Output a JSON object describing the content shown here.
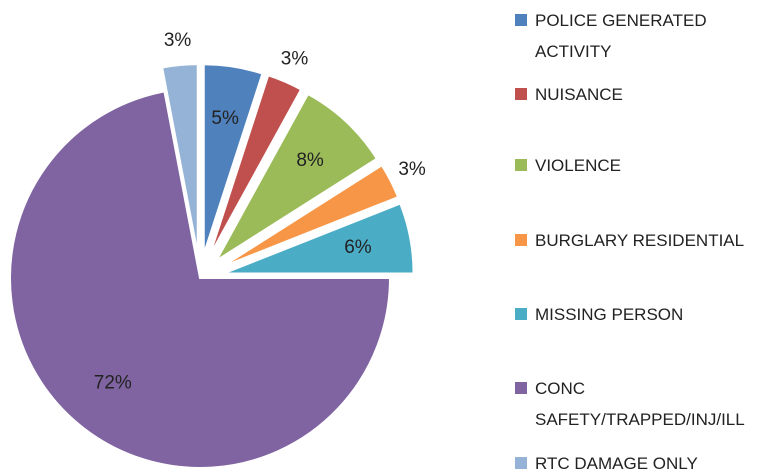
{
  "chart_data": {
    "type": "pie",
    "categories": [
      "POLICE GENERATED ACTIVITY",
      "NUISANCE",
      "VIOLENCE",
      "BURGLARY RESIDENTIAL",
      "MISSING PERSON",
      "CONC SAFETY/TRAPPED/INJ/ILL",
      "RTC DAMAGE ONLY"
    ],
    "values": [
      5,
      3,
      8,
      3,
      6,
      72,
      3
    ],
    "value_labels": [
      "5%",
      "3%",
      "8%",
      "3%",
      "6%",
      "72%",
      "3%"
    ],
    "colors": [
      "#4f81bd",
      "#c0504d",
      "#9bbb59",
      "#f79646",
      "#4bacc6",
      "#8064a2",
      "#95b3d7"
    ],
    "legend": "right"
  }
}
